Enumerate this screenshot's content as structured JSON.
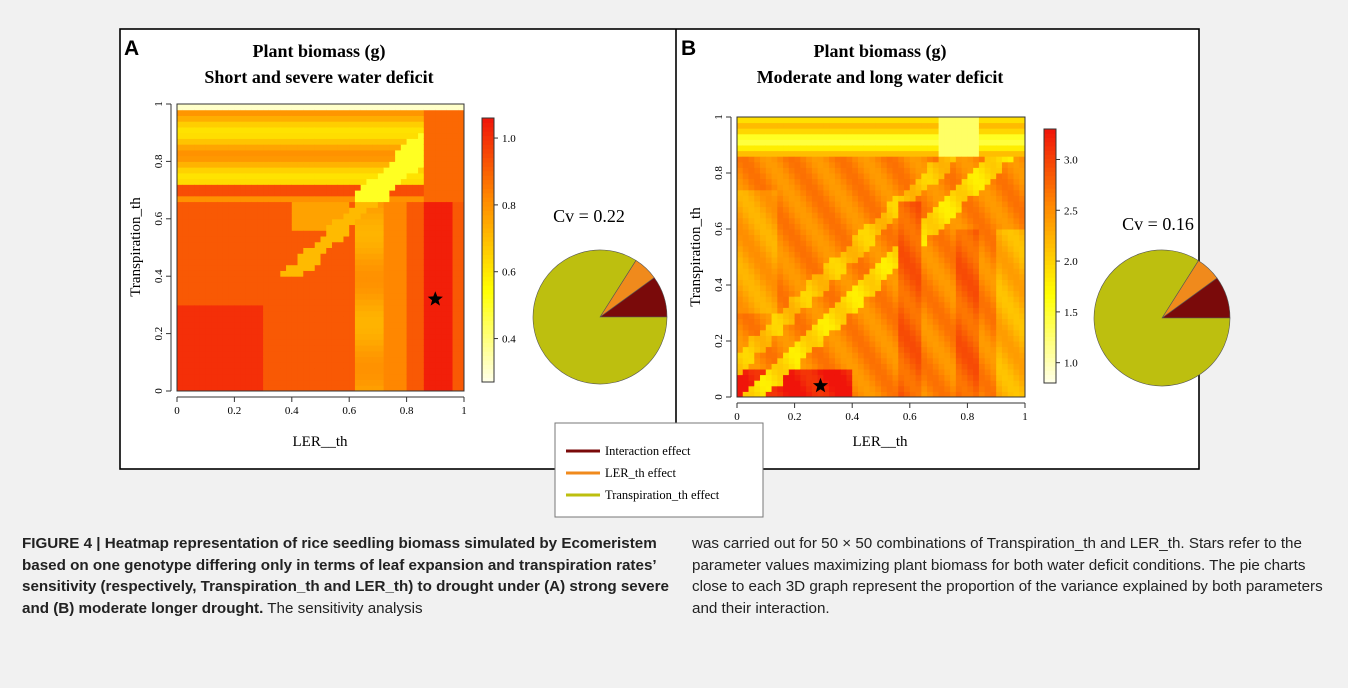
{
  "panels": [
    {
      "letter": "A",
      "title_line1": "Plant biomass (g)",
      "title_line2": "Short and severe water deficit",
      "xlabel": "LER__th",
      "ylabel": "Transpiration_th",
      "x_ticks": [
        "0",
        "0.2",
        "0.4",
        "0.6",
        "0.8",
        "1"
      ],
      "y_ticks": [
        "0",
        "0.2",
        "0.4",
        "0.6",
        "0.8",
        "1"
      ],
      "colorbar_ticks": [
        "0.4",
        "0.6",
        "0.8",
        "1.0"
      ],
      "cv_label": "Cv = 0.22"
    },
    {
      "letter": "B",
      "title_line1": "Plant biomass (g)",
      "title_line2": "Moderate and long water deficit",
      "xlabel": "LER__th",
      "ylabel": "Transpiration_th",
      "x_ticks": [
        "0",
        "0.2",
        "0.4",
        "0.6",
        "0.8",
        "1"
      ],
      "y_ticks": [
        "0",
        "0.2",
        "0.4",
        "0.6",
        "0.8",
        "1"
      ],
      "colorbar_ticks": [
        "1.0",
        "1.5",
        "2.0",
        "2.5",
        "3.0"
      ],
      "cv_label": "Cv = 0.16"
    }
  ],
  "legend": {
    "items": [
      {
        "label": "Interaction effect",
        "color": "#7a0a0a"
      },
      {
        "label": "LER_th effect",
        "color": "#f08a1c"
      },
      {
        "label": "Transpiration_th effect",
        "color": "#bdbf0f"
      }
    ]
  },
  "caption": {
    "bold": "FIGURE 4 | Heatmap representation of rice seedling biomass simulated by Ecomeristem based on one genotype differing only in terms of leaf expansion and transpiration rates’ sensitivity (respectively, Transpiration_th and LER_th) to drought under (A) strong severe and (B) moderate longer drought.",
    "normal_left": "The sensitivity analysis",
    "normal_right": "was carried out for 50 × 50 combinations of Transpiration_th and LER_th. Stars refer to the parameter values maximizing plant biomass for both water deficit conditions. The pie charts close to each 3D graph represent the proportion of the variance explained by both parameters and their interaction."
  },
  "chart_data": [
    {
      "type": "heatmap",
      "title": "Plant biomass (g) Short and severe water deficit",
      "xlabel": "LER__th",
      "ylabel": "Transpiration_th",
      "xlim": [
        0,
        1
      ],
      "ylim": [
        0,
        1
      ],
      "color_range": [
        0.27,
        1.06
      ],
      "best": {
        "x": 0.9,
        "y": 0.32
      },
      "pie": {
        "type": "pie",
        "labels": [
          "Interaction effect",
          "LER_th effect",
          "Transpiration_th effect"
        ],
        "values": [
          0.1,
          0.06,
          0.84
        ]
      },
      "cv": 0.22
    },
    {
      "type": "heatmap",
      "title": "Plant biomass (g) Moderate and long water deficit",
      "xlabel": "LER__th",
      "ylabel": "Transpiration_th",
      "xlim": [
        0,
        1
      ],
      "ylim": [
        0,
        1
      ],
      "color_range": [
        0.8,
        3.3
      ],
      "best": {
        "x": 0.29,
        "y": 0.04
      },
      "pie": {
        "type": "pie",
        "labels": [
          "Interaction effect",
          "LER_th effect",
          "Transpiration_th effect"
        ],
        "values": [
          0.1,
          0.06,
          0.84
        ]
      },
      "cv": 0.16
    }
  ]
}
